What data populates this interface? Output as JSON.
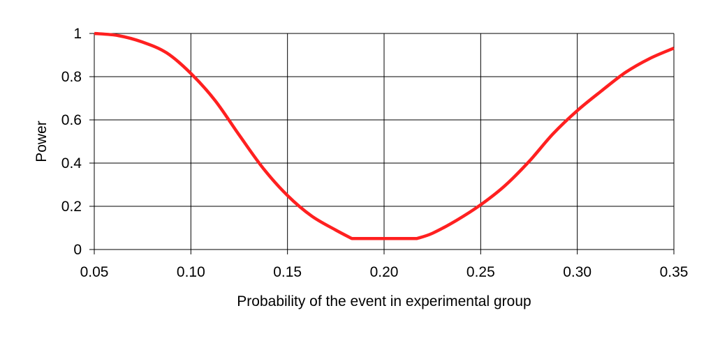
{
  "chart_data": {
    "type": "line",
    "title": "",
    "xlabel": "Probability of the event in experimental group",
    "ylabel": "Power",
    "xlim": [
      0.05,
      0.35
    ],
    "ylim": [
      0,
      1
    ],
    "grid": true,
    "x_ticks": [
      "0.05",
      "0.10",
      "0.15",
      "0.20",
      "0.25",
      "0.30",
      "0.35"
    ],
    "x_tick_values": [
      0.05,
      0.1,
      0.15,
      0.2,
      0.25,
      0.3,
      0.35
    ],
    "y_ticks": [
      "0",
      "0.2",
      "0.4",
      "0.6",
      "0.8",
      "1"
    ],
    "y_tick_values": [
      0,
      0.2,
      0.4,
      0.6,
      0.8,
      1
    ],
    "series": [
      {
        "color": "#ff2020",
        "x": [
          0.05,
          0.0625,
          0.075,
          0.0875,
          0.1,
          0.1125,
          0.125,
          0.1375,
          0.15,
          0.1625,
          0.175,
          0.1833,
          0.217,
          0.225,
          0.2375,
          0.25,
          0.2625,
          0.275,
          0.2875,
          0.3,
          0.3125,
          0.325,
          0.3375,
          0.35
        ],
        "y": [
          1.0,
          0.99,
          0.96,
          0.91,
          0.815,
          0.69,
          0.53,
          0.375,
          0.25,
          0.155,
          0.09,
          0.051,
          0.051,
          0.075,
          0.135,
          0.207,
          0.295,
          0.407,
          0.536,
          0.643,
          0.734,
          0.82,
          0.884,
          0.932
        ]
      }
    ]
  }
}
